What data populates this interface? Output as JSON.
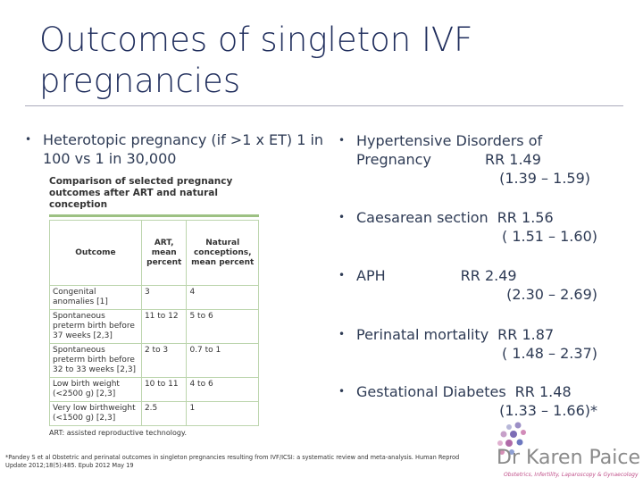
{
  "title": "Outcomes of singleton IVF pregnancies",
  "left_bullet": "Heterotopic pregnancy (if >1 x ET) 1 in 100 vs 1 in 30,000",
  "table": {
    "caption": "Comparison of selected pregnancy outcomes after ART and natural conception",
    "headers": [
      "Outcome",
      "ART, mean percent",
      "Natural conceptions, mean percent"
    ],
    "rows": [
      [
        "Congenital anomalies [1]",
        "3",
        "4"
      ],
      [
        "Spontaneous preterm birth before 37 weeks [2,3]",
        "11 to 12",
        "5 to 6"
      ],
      [
        "Spontaneous preterm birth before 32 to 33 weeks [2,3]",
        "2 to 3",
        "0.7 to 1"
      ],
      [
        "Low birth weight (<2500 g) [2,3]",
        "10 to 11",
        "4 to 6"
      ],
      [
        "Very low birthweight (<1500 g) [2,3]",
        "2.5",
        "1"
      ]
    ],
    "note": "ART: assisted reproductive technology."
  },
  "right_bullets": [
    {
      "label": "Hypertensive Disorders of Pregnancy",
      "rr": "RR 1.49",
      "ci": "(1.39 – 1.59)"
    },
    {
      "label": "Caesarean section",
      "rr": "RR 1.56",
      "ci": "( 1.51 – 1.60)"
    },
    {
      "label": "APH",
      "rr": "RR 2.49",
      "ci": "(2.30 – 2.69)"
    },
    {
      "label": "Perinatal mortality",
      "rr": "RR 1.87",
      "ci": "( 1.48 – 2.37)"
    },
    {
      "label": "Gestational Diabetes",
      "rr": "RR 1.48",
      "ci": "(1.33 – 1.66)*"
    }
  ],
  "footnote": "*Pandey S et al Obstetric and perinatal outcomes in singleton pregnancies resulting from IVF/ICSI: a systematic review and meta-analysis. Human Reprod Update 2012;18(5):485. Epub 2012 May 19",
  "logo": {
    "name": "Dr Karen Paice",
    "tagline": "Obstetrics, Infertility, Laparoscopy & Gynaecology"
  }
}
